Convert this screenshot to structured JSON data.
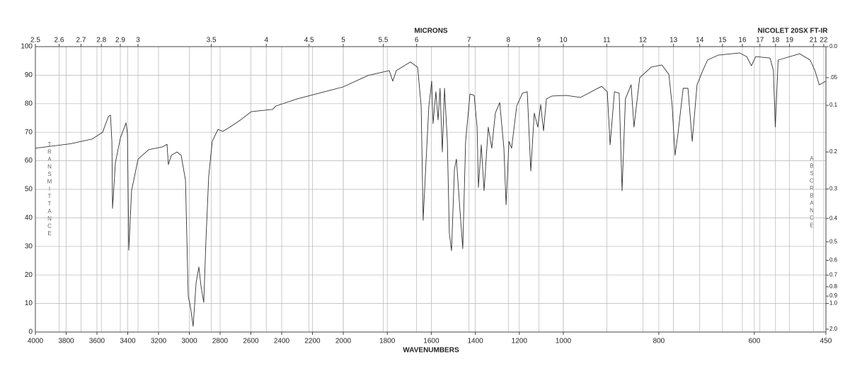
{
  "chart_data": {
    "type": "line",
    "title": "NICOLET 20SX FT-IR",
    "xlabel": "WAVENUMBERS",
    "x2label": "MICRONS",
    "ylabel": "TRANSMITTANCE",
    "y2label": "ABSORBANCE",
    "color": "#333333",
    "grid": true,
    "xlim": [
      4000,
      450
    ],
    "xticks": [
      4000,
      3800,
      3600,
      3400,
      3200,
      3000,
      2800,
      2600,
      2400,
      2200,
      2000,
      1800,
      1600,
      1400,
      1200,
      1000,
      800,
      600,
      450
    ],
    "x2ticks": [
      2.5,
      2.6,
      2.7,
      2.8,
      2.9,
      3,
      3.5,
      4,
      4.5,
      5,
      5.5,
      6,
      7,
      8,
      9,
      10,
      11,
      12,
      13,
      14,
      15,
      16,
      17,
      18,
      19,
      21,
      22
    ],
    "ylim": [
      0,
      100
    ],
    "yticks": [
      0,
      10,
      20,
      30,
      40,
      50,
      60,
      70,
      80,
      90,
      100
    ],
    "y2ticks": [
      {
        "value": 0,
        "label": "0.0"
      },
      {
        "value": 0.05,
        "label": ".05"
      },
      0.1,
      0.2,
      0.3,
      0.4,
      0.5,
      0.6,
      0.7,
      0.8,
      0.9,
      {
        "value": 1,
        "label": "1.0"
      },
      {
        "value": 2,
        "label": "2.0"
      }
    ],
    "x": [
      4000,
      3770,
      3632,
      3563,
      3526,
      3512,
      3503,
      3499,
      3480,
      3448,
      3411,
      3402,
      3393,
      3375,
      3333,
      3264,
      3172,
      3145,
      3136,
      3117,
      3080,
      3053,
      3025,
      3007,
      2998,
      2989,
      2975,
      2956,
      2938,
      2924,
      2906,
      2892,
      2874,
      2851,
      2814,
      2782,
      2736,
      2667,
      2598,
      2460,
      2437,
      2299,
      2000,
      1887,
      1791,
      1775,
      1759,
      1695,
      1662,
      1646,
      1637,
      1624,
      1611,
      1598,
      1592,
      1579,
      1569,
      1560,
      1550,
      1540,
      1527,
      1518,
      1508,
      1495,
      1486,
      1469,
      1457,
      1444,
      1424,
      1405,
      1392,
      1386,
      1373,
      1360,
      1341,
      1325,
      1309,
      1289,
      1270,
      1260,
      1247,
      1235,
      1212,
      1186,
      1164,
      1148,
      1132,
      1116,
      1103,
      1090,
      1077,
      1051,
      994,
      964,
      920,
      908,
      902,
      893,
      883,
      877,
      870,
      858,
      852,
      840,
      816,
      794,
      779,
      772,
      766,
      760,
      749,
      739,
      730,
      720,
      708,
      698,
      676,
      631,
      616,
      606,
      597,
      567,
      560,
      556,
      550,
      505,
      483,
      473,
      464,
      450
    ],
    "values": [
      64.4,
      66,
      67.6,
      70,
      75.5,
      76,
      66.8,
      43.3,
      59.4,
      68,
      73.3,
      69.3,
      28.7,
      49.5,
      60.6,
      63.9,
      64.9,
      65.8,
      58.7,
      61.9,
      63.1,
      61.9,
      53.2,
      12.4,
      10.4,
      7.4,
      2,
      17.3,
      22.8,
      16.1,
      10.4,
      32.2,
      54.5,
      66.8,
      71,
      70.3,
      71.8,
      74.3,
      77.2,
      78,
      79.2,
      81.7,
      85.9,
      89.9,
      91.6,
      87.9,
      91.6,
      94.6,
      92.8,
      79.2,
      39.1,
      59.4,
      79.2,
      87.9,
      73,
      84.2,
      74.3,
      85.4,
      63.1,
      85.4,
      66.8,
      34.7,
      28.5,
      56.9,
      60.6,
      42.1,
      29.2,
      66.8,
      83.4,
      82.9,
      71.8,
      50.7,
      65.6,
      49.5,
      71.8,
      64.4,
      76.7,
      80.4,
      64.4,
      44.6,
      66.8,
      64.4,
      79.2,
      83.7,
      84.2,
      56.4,
      76.7,
      71.8,
      79.7,
      70.5,
      81.7,
      82.7,
      82.9,
      82.2,
      86.1,
      84.2,
      65.6,
      84.2,
      83.7,
      49.5,
      81.7,
      86.6,
      71.8,
      89.1,
      92.8,
      93.6,
      90.3,
      79.2,
      61.9,
      69.3,
      85.4,
      85.4,
      66.8,
      86.6,
      91.6,
      95.3,
      97,
      97.8,
      96.5,
      93.3,
      96.5,
      96,
      91.6,
      71.8,
      95.3,
      97.5,
      95.3,
      91.6,
      86.6,
      87.9
    ]
  }
}
